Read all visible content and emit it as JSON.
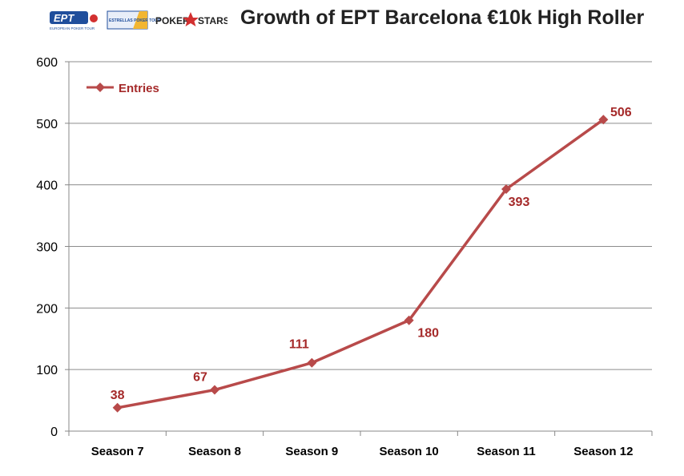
{
  "logos": {
    "ept": "EPT",
    "ept_sub": "EUROPEAN POKER TOUR",
    "estrellas": "ESTRELLAS POKER TOUR",
    "pokerstars_left": "POKER",
    "pokerstars_right": "STARS"
  },
  "colors": {
    "series": "#b84a4a",
    "label": "#a52a2a",
    "grid": "#8c8c8c",
    "ept_blue": "#1f4e9c"
  },
  "chart_data": {
    "type": "line",
    "title": "Growth of EPT Barcelona €10k High Roller",
    "categories": [
      "Season 7",
      "Season 8",
      "Season 9",
      "Season 10",
      "Season 11",
      "Season 12"
    ],
    "series": [
      {
        "name": "Entries",
        "values": [
          38,
          67,
          111,
          180,
          393,
          506
        ]
      }
    ],
    "data_labels": [
      "38",
      "67",
      "111",
      "180",
      "393",
      "506"
    ],
    "ylim": [
      0,
      600
    ],
    "yticks": [
      0,
      100,
      200,
      300,
      400,
      500,
      600
    ],
    "ytick_labels": [
      "0",
      "100",
      "200",
      "300",
      "400",
      "500",
      "600"
    ],
    "grid": true,
    "legend": "top-left",
    "marker": "diamond"
  }
}
